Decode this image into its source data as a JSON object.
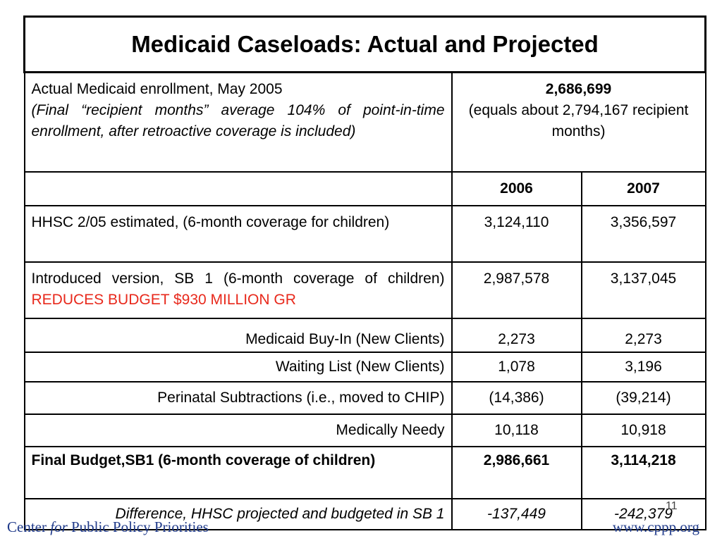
{
  "title": "Medicaid Caseloads: Actual and Projected",
  "actual": {
    "label": "Actual Medicaid enrollment, May 2005",
    "note": "(Final “recipient months” average 104% of point-in-time enrollment, after retroactive coverage is included)",
    "value": "2,686,699",
    "value_note": "(equals about 2,794,167 recipient months)"
  },
  "years": [
    "2006",
    "2007"
  ],
  "rows": {
    "hhsc": {
      "label": "HHSC 2/05 estimated, (6-month coverage for children)",
      "v2006": "3,124,110",
      "v2007": "3,356,597"
    },
    "intro": {
      "label": "Introduced version, SB 1 (6-month coverage of children)",
      "label_red": "REDUCES BUDGET $930 MILLION GR",
      "v2006": "2,987,578",
      "v2007": "3,137,045"
    },
    "buyin": {
      "label": "Medicaid Buy-In (New Clients)",
      "v2006": "2,273",
      "v2007": "2,273"
    },
    "wait": {
      "label": "Waiting List (New Clients)",
      "v2006": "1,078",
      "v2007": "3,196"
    },
    "peri": {
      "label": "Perinatal Subtractions (i.e., moved to CHIP)",
      "v2006": "(14,386)",
      "v2007": "(39,214)"
    },
    "needy": {
      "label": "Medically Needy",
      "v2006": "10,118",
      "v2007": "10,918"
    },
    "final": {
      "label": "Final Budget,SB1 (6-month coverage of children)",
      "v2006": "2,986,661",
      "v2007": "3,114,218"
    },
    "diff": {
      "label": "Difference, HHSC projected and budgeted in SB 1",
      "v2006": "-137,449",
      "v2007": "-242,379"
    }
  },
  "footer": {
    "left_pre": "Center ",
    "left_for": "for",
    "left_post": " Public Policy Priorities",
    "right": "www.cppp.org",
    "page": "11"
  }
}
